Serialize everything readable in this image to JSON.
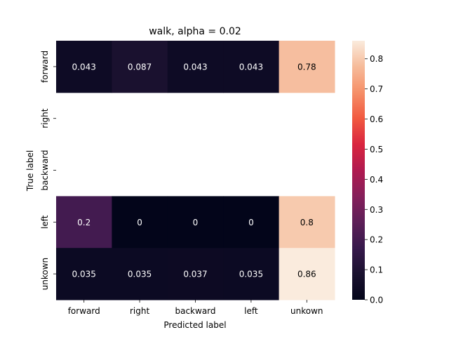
{
  "chart_data": {
    "type": "heatmap",
    "title": "walk, alpha = 0.02",
    "xlabel": "Predicted label",
    "ylabel": "True label",
    "x_categories": [
      "forward",
      "right",
      "backward",
      "left",
      "unkown"
    ],
    "y_categories": [
      "forward",
      "right",
      "backward",
      "left",
      "unkown"
    ],
    "values": [
      [
        0.043,
        0.087,
        0.043,
        0.043,
        0.78
      ],
      [
        null,
        null,
        null,
        null,
        null
      ],
      [
        null,
        null,
        null,
        null,
        null
      ],
      [
        0.2,
        0,
        0,
        0,
        0.8
      ],
      [
        0.035,
        0.035,
        0.037,
        0.035,
        0.86
      ]
    ],
    "cell_labels": [
      [
        "0.043",
        "0.087",
        "0.043",
        "0.043",
        "0.78"
      ],
      [
        "",
        "",
        "",
        "",
        ""
      ],
      [
        "",
        "",
        "",
        "",
        ""
      ],
      [
        "0.2",
        "0",
        "0",
        "0",
        "0.8"
      ],
      [
        "0.035",
        "0.035",
        "0.037",
        "0.035",
        "0.86"
      ]
    ],
    "colorbar": {
      "range": [
        0.0,
        0.86
      ],
      "ticks": [
        "0.0",
        "0.1",
        "0.2",
        "0.3",
        "0.4",
        "0.5",
        "0.6",
        "0.7",
        "0.8"
      ],
      "colormap": "rocket"
    }
  }
}
